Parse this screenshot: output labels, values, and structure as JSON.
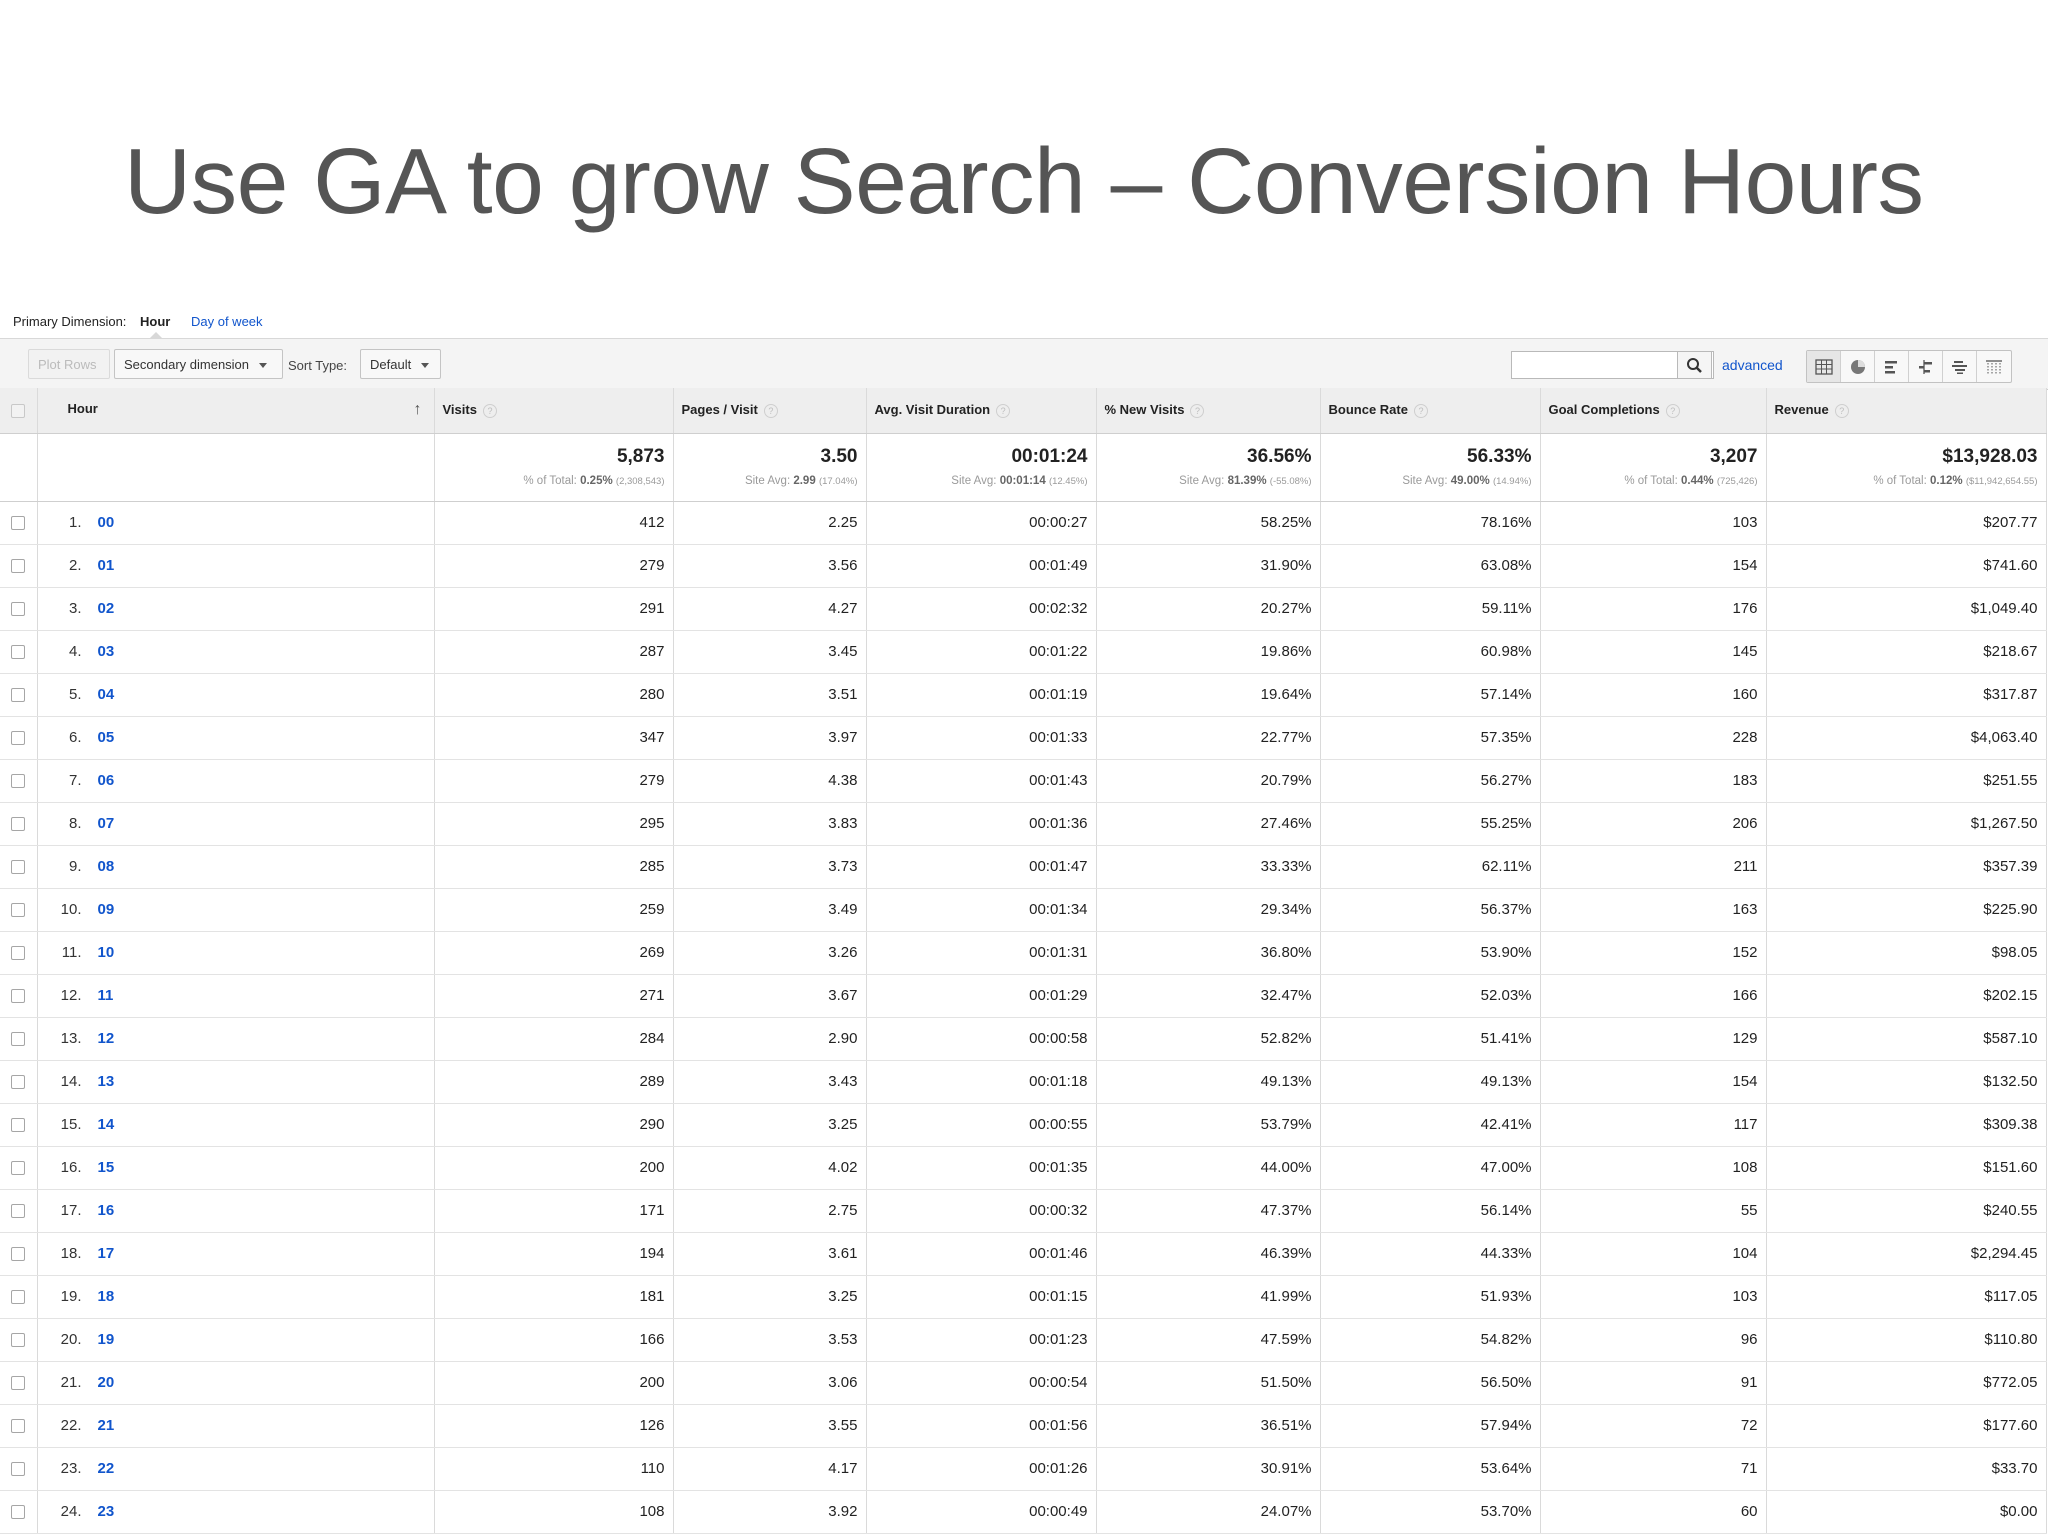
{
  "slide": {
    "title": "Use GA to grow Search – Conversion Hours"
  },
  "dimension_bar": {
    "label": "Primary Dimension:",
    "current": "Hour",
    "alternative": "Day of week"
  },
  "toolbar": {
    "plot_rows": "Plot Rows",
    "secondary_dimension": "Secondary dimension",
    "sort_type_label": "Sort Type:",
    "sort_type_value": "Default",
    "search_value": "",
    "advanced": "advanced",
    "views": [
      "data-table-icon",
      "pie-chart-icon",
      "performance-bar-icon",
      "comparison-icon",
      "term-cloud-icon",
      "pivot-icon"
    ]
  },
  "table": {
    "headers": {
      "hour": "Hour",
      "visits": "Visits",
      "pages_visit": "Pages / Visit",
      "avg_duration": "Avg. Visit Duration",
      "new_visits": "% New Visits",
      "bounce_rate": "Bounce Rate",
      "goal_completions": "Goal Completions",
      "revenue": "Revenue"
    },
    "help_glyph": "?",
    "sort_arrow": "↑",
    "totals": {
      "visits": {
        "value": "5,873",
        "label": "% of Total:",
        "bold": "0.25%",
        "tiny": "(2,308,543)"
      },
      "pages_visit": {
        "value": "3.50",
        "label": "Site Avg:",
        "bold": "2.99",
        "tiny": "(17.04%)"
      },
      "avg_duration": {
        "value": "00:01:24",
        "label": "Site Avg:",
        "bold": "00:01:14",
        "tiny": "(12.45%)"
      },
      "new_visits": {
        "value": "36.56%",
        "label": "Site Avg:",
        "bold": "81.39%",
        "tiny": "(-55.08%)"
      },
      "bounce_rate": {
        "value": "56.33%",
        "label": "Site Avg:",
        "bold": "49.00%",
        "tiny": "(14.94%)"
      },
      "goal_completions": {
        "value": "3,207",
        "label": "% of Total:",
        "bold": "0.44%",
        "tiny": "(725,426)"
      },
      "revenue": {
        "value": "$13,928.03",
        "label": "% of Total:",
        "bold": "0.12%",
        "tiny": "($11,942,654.55)"
      }
    },
    "rows": [
      {
        "idx": "1.",
        "hour": "00",
        "visits": "412",
        "pages": "2.25",
        "duration": "00:00:27",
        "new": "58.25%",
        "bounce": "78.16%",
        "goals": "103",
        "revenue": "$207.77"
      },
      {
        "idx": "2.",
        "hour": "01",
        "visits": "279",
        "pages": "3.56",
        "duration": "00:01:49",
        "new": "31.90%",
        "bounce": "63.08%",
        "goals": "154",
        "revenue": "$741.60"
      },
      {
        "idx": "3.",
        "hour": "02",
        "visits": "291",
        "pages": "4.27",
        "duration": "00:02:32",
        "new": "20.27%",
        "bounce": "59.11%",
        "goals": "176",
        "revenue": "$1,049.40"
      },
      {
        "idx": "4.",
        "hour": "03",
        "visits": "287",
        "pages": "3.45",
        "duration": "00:01:22",
        "new": "19.86%",
        "bounce": "60.98%",
        "goals": "145",
        "revenue": "$218.67"
      },
      {
        "idx": "5.",
        "hour": "04",
        "visits": "280",
        "pages": "3.51",
        "duration": "00:01:19",
        "new": "19.64%",
        "bounce": "57.14%",
        "goals": "160",
        "revenue": "$317.87"
      },
      {
        "idx": "6.",
        "hour": "05",
        "visits": "347",
        "pages": "3.97",
        "duration": "00:01:33",
        "new": "22.77%",
        "bounce": "57.35%",
        "goals": "228",
        "revenue": "$4,063.40"
      },
      {
        "idx": "7.",
        "hour": "06",
        "visits": "279",
        "pages": "4.38",
        "duration": "00:01:43",
        "new": "20.79%",
        "bounce": "56.27%",
        "goals": "183",
        "revenue": "$251.55"
      },
      {
        "idx": "8.",
        "hour": "07",
        "visits": "295",
        "pages": "3.83",
        "duration": "00:01:36",
        "new": "27.46%",
        "bounce": "55.25%",
        "goals": "206",
        "revenue": "$1,267.50"
      },
      {
        "idx": "9.",
        "hour": "08",
        "visits": "285",
        "pages": "3.73",
        "duration": "00:01:47",
        "new": "33.33%",
        "bounce": "62.11%",
        "goals": "211",
        "revenue": "$357.39"
      },
      {
        "idx": "10.",
        "hour": "09",
        "visits": "259",
        "pages": "3.49",
        "duration": "00:01:34",
        "new": "29.34%",
        "bounce": "56.37%",
        "goals": "163",
        "revenue": "$225.90"
      },
      {
        "idx": "11.",
        "hour": "10",
        "visits": "269",
        "pages": "3.26",
        "duration": "00:01:31",
        "new": "36.80%",
        "bounce": "53.90%",
        "goals": "152",
        "revenue": "$98.05"
      },
      {
        "idx": "12.",
        "hour": "11",
        "visits": "271",
        "pages": "3.67",
        "duration": "00:01:29",
        "new": "32.47%",
        "bounce": "52.03%",
        "goals": "166",
        "revenue": "$202.15"
      },
      {
        "idx": "13.",
        "hour": "12",
        "visits": "284",
        "pages": "2.90",
        "duration": "00:00:58",
        "new": "52.82%",
        "bounce": "51.41%",
        "goals": "129",
        "revenue": "$587.10"
      },
      {
        "idx": "14.",
        "hour": "13",
        "visits": "289",
        "pages": "3.43",
        "duration": "00:01:18",
        "new": "49.13%",
        "bounce": "49.13%",
        "goals": "154",
        "revenue": "$132.50"
      },
      {
        "idx": "15.",
        "hour": "14",
        "visits": "290",
        "pages": "3.25",
        "duration": "00:00:55",
        "new": "53.79%",
        "bounce": "42.41%",
        "goals": "117",
        "revenue": "$309.38"
      },
      {
        "idx": "16.",
        "hour": "15",
        "visits": "200",
        "pages": "4.02",
        "duration": "00:01:35",
        "new": "44.00%",
        "bounce": "47.00%",
        "goals": "108",
        "revenue": "$151.60"
      },
      {
        "idx": "17.",
        "hour": "16",
        "visits": "171",
        "pages": "2.75",
        "duration": "00:00:32",
        "new": "47.37%",
        "bounce": "56.14%",
        "goals": "55",
        "revenue": "$240.55"
      },
      {
        "idx": "18.",
        "hour": "17",
        "visits": "194",
        "pages": "3.61",
        "duration": "00:01:46",
        "new": "46.39%",
        "bounce": "44.33%",
        "goals": "104",
        "revenue": "$2,294.45"
      },
      {
        "idx": "19.",
        "hour": "18",
        "visits": "181",
        "pages": "3.25",
        "duration": "00:01:15",
        "new": "41.99%",
        "bounce": "51.93%",
        "goals": "103",
        "revenue": "$117.05"
      },
      {
        "idx": "20.",
        "hour": "19",
        "visits": "166",
        "pages": "3.53",
        "duration": "00:01:23",
        "new": "47.59%",
        "bounce": "54.82%",
        "goals": "96",
        "revenue": "$110.80"
      },
      {
        "idx": "21.",
        "hour": "20",
        "visits": "200",
        "pages": "3.06",
        "duration": "00:00:54",
        "new": "51.50%",
        "bounce": "56.50%",
        "goals": "91",
        "revenue": "$772.05"
      },
      {
        "idx": "22.",
        "hour": "21",
        "visits": "126",
        "pages": "3.55",
        "duration": "00:01:56",
        "new": "36.51%",
        "bounce": "57.94%",
        "goals": "72",
        "revenue": "$177.60"
      },
      {
        "idx": "23.",
        "hour": "22",
        "visits": "110",
        "pages": "4.17",
        "duration": "00:01:26",
        "new": "30.91%",
        "bounce": "53.64%",
        "goals": "71",
        "revenue": "$33.70"
      },
      {
        "idx": "24.",
        "hour": "23",
        "visits": "108",
        "pages": "3.92",
        "duration": "00:00:49",
        "new": "24.07%",
        "bounce": "53.70%",
        "goals": "60",
        "revenue": "$0.00"
      }
    ]
  },
  "colors": {
    "link": "#1155cc",
    "title": "#555555",
    "header_bg": "#eeeeee",
    "toolbar_bg": "#f4f4f4"
  }
}
